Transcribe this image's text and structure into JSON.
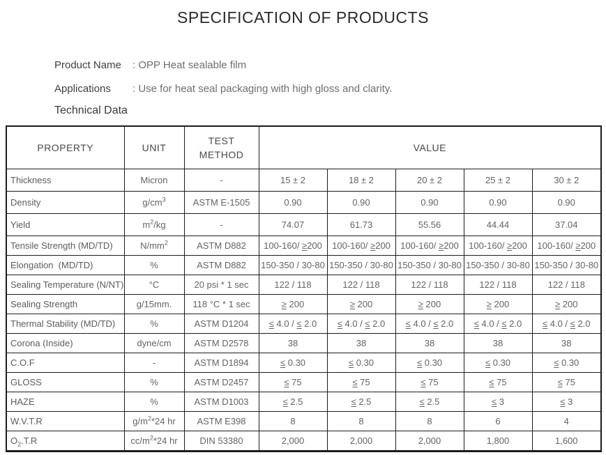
{
  "page": {
    "title": "SPECIFICATION OF PRODUCTS",
    "product_name_label": "Product Name",
    "product_name_value": ": OPP Heat sealable film",
    "applications_label": "Applications",
    "applications_value": ": Use for heat seal packaging with high gloss and clarity.",
    "technical_data_label": "Technical Data"
  },
  "table": {
    "headers": {
      "property": "PROPERTY",
      "unit": "UNIT",
      "test_method_lines": [
        "TEST",
        "METHOD"
      ],
      "value": "VALUE"
    },
    "rows": [
      {
        "property": "Thickness",
        "unit": "Micron",
        "test": "-",
        "values": [
          "15 ± 2",
          "18 ± 2",
          "20 ± 2",
          "25 ± 2",
          "30 ± 2"
        ]
      },
      {
        "property": "Density",
        "unit": "g/cm^{3}",
        "test": "ASTM E-1505",
        "values": [
          "0.90",
          "0.90",
          "0.90",
          "0.90",
          "0.90"
        ]
      },
      {
        "property": "Yield",
        "unit": "m^{2}/kg",
        "test": "-",
        "values": [
          "74.07",
          "61.73",
          "55.56",
          "44.44",
          "37.04"
        ]
      },
      {
        "property": "Tensile Strength (MD/TD)",
        "unit": "N/mm^{2}",
        "test": "ASTM D882",
        "values": [
          "100-160/ ≥200",
          "100-160/ ≥200",
          "100-160/ ≥200",
          "100-160/ ≥200",
          "100-160/ ≥200"
        ]
      },
      {
        "property": "Elongation  (MD/TD)",
        "unit": "%",
        "test": "ASTM D882",
        "values": [
          "150-350 / 30-80",
          "150-350 / 30-80",
          "150-350 / 30-80",
          "150-350 / 30-80",
          "150-350 / 30-80"
        ]
      },
      {
        "property": "Sealing Temperature (N/NT)",
        "unit": "°C",
        "test": "20 psi * 1 sec",
        "values": [
          "122 / 118",
          "122 / 118",
          "122 / 118",
          "122 / 118",
          "122 / 118"
        ]
      },
      {
        "property": "Sealing Strength",
        "unit": "g/15mm.",
        "test": "118 °C * 1 sec",
        "values": [
          "≥ 200",
          "≥ 200",
          "≥ 200",
          "≥ 200",
          "≥ 200"
        ]
      },
      {
        "property": "Thermal Stability (MD/TD)",
        "unit": "%",
        "test": "ASTM D1204",
        "values": [
          "≤ 4.0 / ≤ 2.0",
          "≤ 4.0 / ≤ 2.0",
          "≤ 4.0 / ≤ 2.0",
          "≤ 4.0 / ≤ 2.0",
          "≤ 4.0 / ≤ 2.0"
        ]
      },
      {
        "property": "Corona (Inside)",
        "unit": "dyne/cm",
        "test": "ASTM D2578",
        "values": [
          "38",
          "38",
          "38",
          "38",
          "38"
        ]
      },
      {
        "property": "C.O.F",
        "unit": "-",
        "test": "ASTM D1894",
        "values": [
          "≤ 0.30",
          "≤ 0.30",
          "≤ 0.30",
          "≤ 0.30",
          "≤ 0.30"
        ]
      },
      {
        "property": "GLOSS",
        "unit": "%",
        "test": "ASTM D2457",
        "values": [
          "≤ 75",
          "≤ 75",
          "≤ 75",
          "≤ 75",
          "≤ 75"
        ]
      },
      {
        "property": "HAZE",
        "unit": "%",
        "test": "ASTM D1003",
        "values": [
          "≤ 2.5",
          "≤ 2.5",
          "≤ 2.5",
          "≤ 3",
          "≤ 3"
        ]
      },
      {
        "property": "W.V.T.R",
        "unit": "g/m^{2}*24 hr",
        "test": "ASTM E398",
        "values": [
          "8",
          "8",
          "8",
          "6",
          "4"
        ]
      },
      {
        "property": "O~{2}.T.R",
        "unit": "cc/m^{2}*24 hr",
        "test": "DIN 53380",
        "values": [
          "2,000",
          "2,000",
          "2,000",
          "1,800",
          "1,600"
        ]
      }
    ]
  },
  "colors": {
    "page_background": "#ffffff",
    "border": "#1c1c1c",
    "heading_text": "#38393b",
    "body_text": "#6d6e71"
  }
}
